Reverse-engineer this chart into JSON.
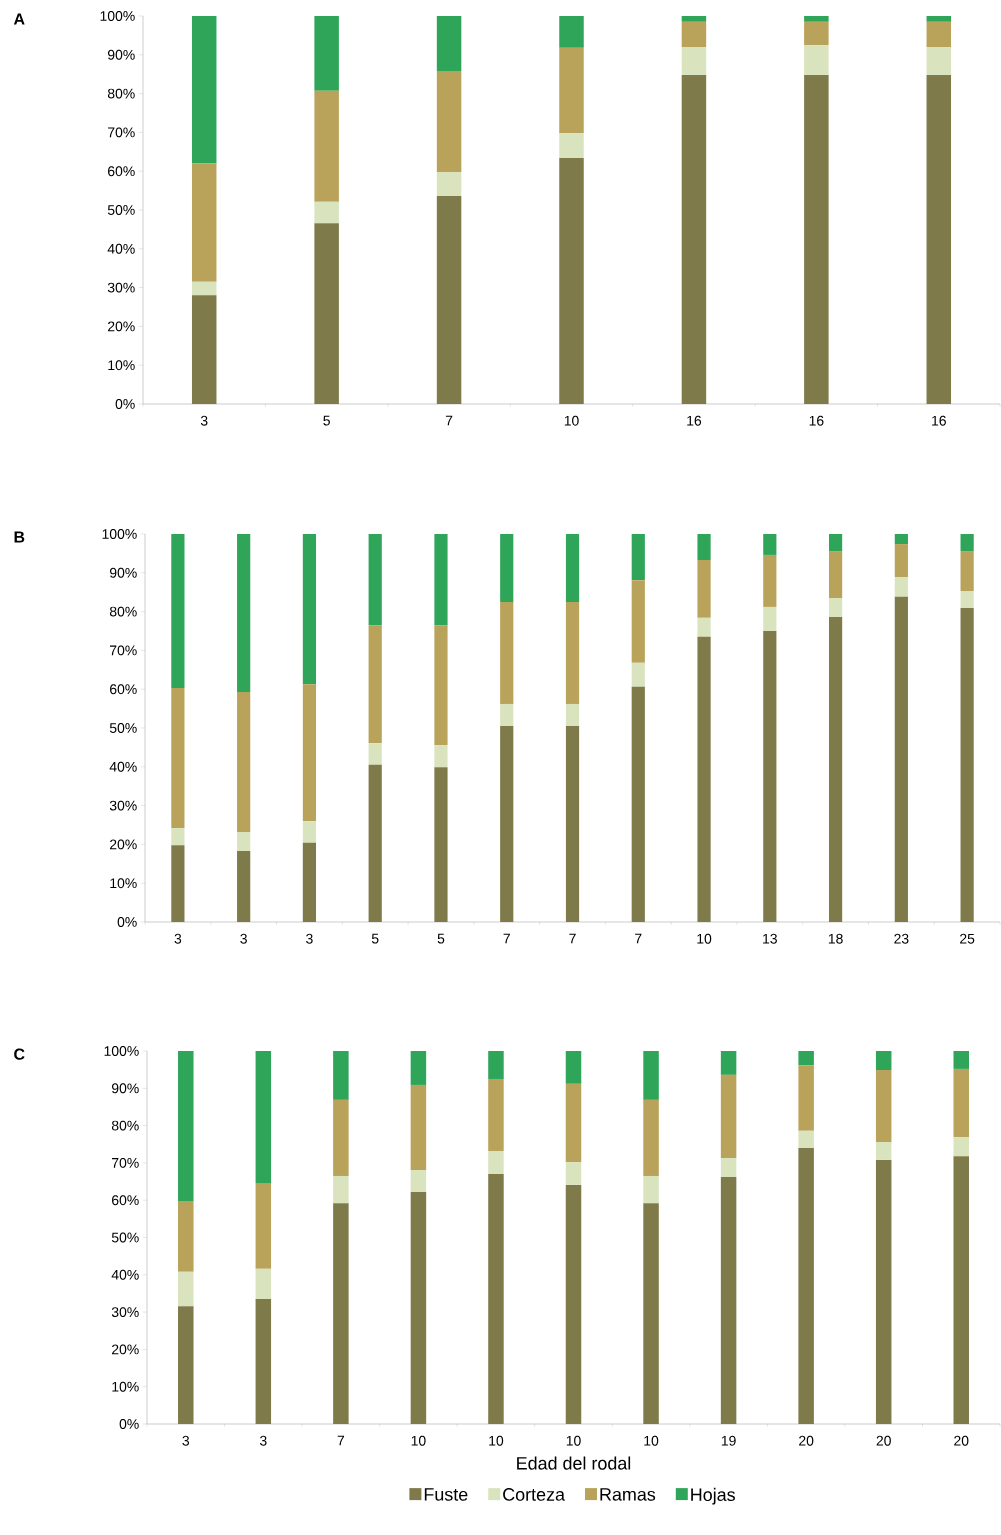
{
  "chart_data": [
    {
      "type": "bar",
      "title": "A",
      "stacked": true,
      "legend": false,
      "categories": [
        "3",
        "5",
        "7",
        "10",
        "16",
        "16",
        "16"
      ],
      "ylim": [
        0,
        100
      ],
      "yticks": [
        {
          "value": 0,
          "label": "0%"
        },
        {
          "value": 10,
          "label": "10%"
        },
        {
          "value": 20,
          "label": "20%"
        },
        {
          "value": 30,
          "label": "30%"
        },
        {
          "value": 40,
          "label": "40%"
        },
        {
          "value": 50,
          "label": "50%"
        },
        {
          "value": 60,
          "label": "60%"
        },
        {
          "value": 70,
          "label": "70%"
        },
        {
          "value": 80,
          "label": "80%"
        },
        {
          "value": 90,
          "label": "90%"
        },
        {
          "value": 100,
          "label": "100%"
        }
      ],
      "series": [
        {
          "color": "#7f7a4a",
          "values": [
            28,
            46.6,
            53.6,
            63.4,
            84.8,
            84.8,
            84.8
          ]
        },
        {
          "color": "#d9e4bf",
          "values": [
            3.5,
            5.5,
            6.2,
            6.4,
            7.2,
            7.7,
            7.2
          ]
        },
        {
          "color": "#b9a25a",
          "values": [
            30.5,
            28.6,
            26,
            22,
            6.5,
            6,
            6.5
          ]
        },
        {
          "color": "#2fa55a",
          "values": [
            38,
            19.3,
            14.2,
            8.2,
            1.5,
            1.5,
            1.5
          ]
        }
      ]
    },
    {
      "type": "bar",
      "title": "B",
      "stacked": true,
      "legend": false,
      "categories": [
        "3",
        "3",
        "3",
        "5",
        "5",
        "7",
        "7",
        "7",
        "10",
        "13",
        "18",
        "23",
        "25"
      ],
      "ylim": [
        0,
        100
      ],
      "yticks": [
        {
          "value": 0,
          "label": "0%"
        },
        {
          "value": 10,
          "label": "10%"
        },
        {
          "value": 20,
          "label": "20%"
        },
        {
          "value": 30,
          "label": "30%"
        },
        {
          "value": 40,
          "label": "40%"
        },
        {
          "value": 50,
          "label": "50%"
        },
        {
          "value": 60,
          "label": "60%"
        },
        {
          "value": 70,
          "label": "70%"
        },
        {
          "value": 80,
          "label": "80%"
        },
        {
          "value": 90,
          "label": "90%"
        },
        {
          "value": 100,
          "label": "100%"
        }
      ],
      "series": [
        {
          "color": "#7f7a4a",
          "values": [
            19.8,
            18.3,
            20.4,
            40.5,
            39.9,
            50.5,
            50.5,
            60.6,
            73.5,
            75,
            78.6,
            83.8,
            80.9
          ]
        },
        {
          "color": "#d9e4bf",
          "values": [
            4.4,
            4.9,
            5.6,
            5.6,
            5.7,
            5.7,
            5.7,
            6.2,
            4.9,
            6.2,
            4.9,
            5.1,
            4.4
          ]
        },
        {
          "color": "#b9a25a",
          "values": [
            36.1,
            36.1,
            35.3,
            30.4,
            30.9,
            26.3,
            26.3,
            21.3,
            14.9,
            13.4,
            12.1,
            8.5,
            10.3
          ]
        },
        {
          "color": "#2fa55a",
          "values": [
            39.7,
            40.7,
            38.7,
            23.5,
            23.5,
            17.5,
            17.5,
            11.9,
            6.7,
            5.4,
            4.4,
            2.6,
            4.4
          ]
        }
      ]
    },
    {
      "type": "bar",
      "title": "C",
      "xlabel": "Edad del rodal",
      "stacked": true,
      "legend": "bottom",
      "categories": [
        "3",
        "3",
        "7",
        "10",
        "10",
        "10",
        "10",
        "19",
        "20",
        "20",
        "20"
      ],
      "ylim": [
        0,
        100
      ],
      "yticks": [
        {
          "value": 0,
          "label": "0%"
        },
        {
          "value": 10,
          "label": "10%"
        },
        {
          "value": 20,
          "label": "20%"
        },
        {
          "value": 30,
          "label": "30%"
        },
        {
          "value": 40,
          "label": "40%"
        },
        {
          "value": 50,
          "label": "50%"
        },
        {
          "value": 60,
          "label": "60%"
        },
        {
          "value": 70,
          "label": "70%"
        },
        {
          "value": 80,
          "label": "80%"
        },
        {
          "value": 90,
          "label": "90%"
        },
        {
          "value": 100,
          "label": "100%"
        }
      ],
      "series": [
        {
          "name": "Fuste",
          "color": "#7f7a4a",
          "values": [
            31.6,
            33.5,
            59.2,
            62.2,
            67,
            64.1,
            59.2,
            66.2,
            74,
            70.8,
            71.8
          ]
        },
        {
          "name": "Corteza",
          "color": "#d9e4bf",
          "values": [
            9.2,
            8.1,
            7.3,
            5.9,
            6.2,
            6.1,
            7.3,
            5.1,
            4.6,
            4.8,
            5.1
          ]
        },
        {
          "name": "Ramas",
          "color": "#b9a25a",
          "values": [
            19,
            23,
            20.4,
            22.8,
            19.3,
            21,
            20.4,
            22.3,
            17.6,
            19.3,
            18.3
          ]
        },
        {
          "name": "Hojas",
          "color": "#2fa55a",
          "values": [
            40.2,
            35.4,
            13.1,
            9.1,
            7.5,
            8.8,
            13.1,
            6.4,
            3.8,
            5.1,
            4.8
          ]
        }
      ]
    }
  ]
}
